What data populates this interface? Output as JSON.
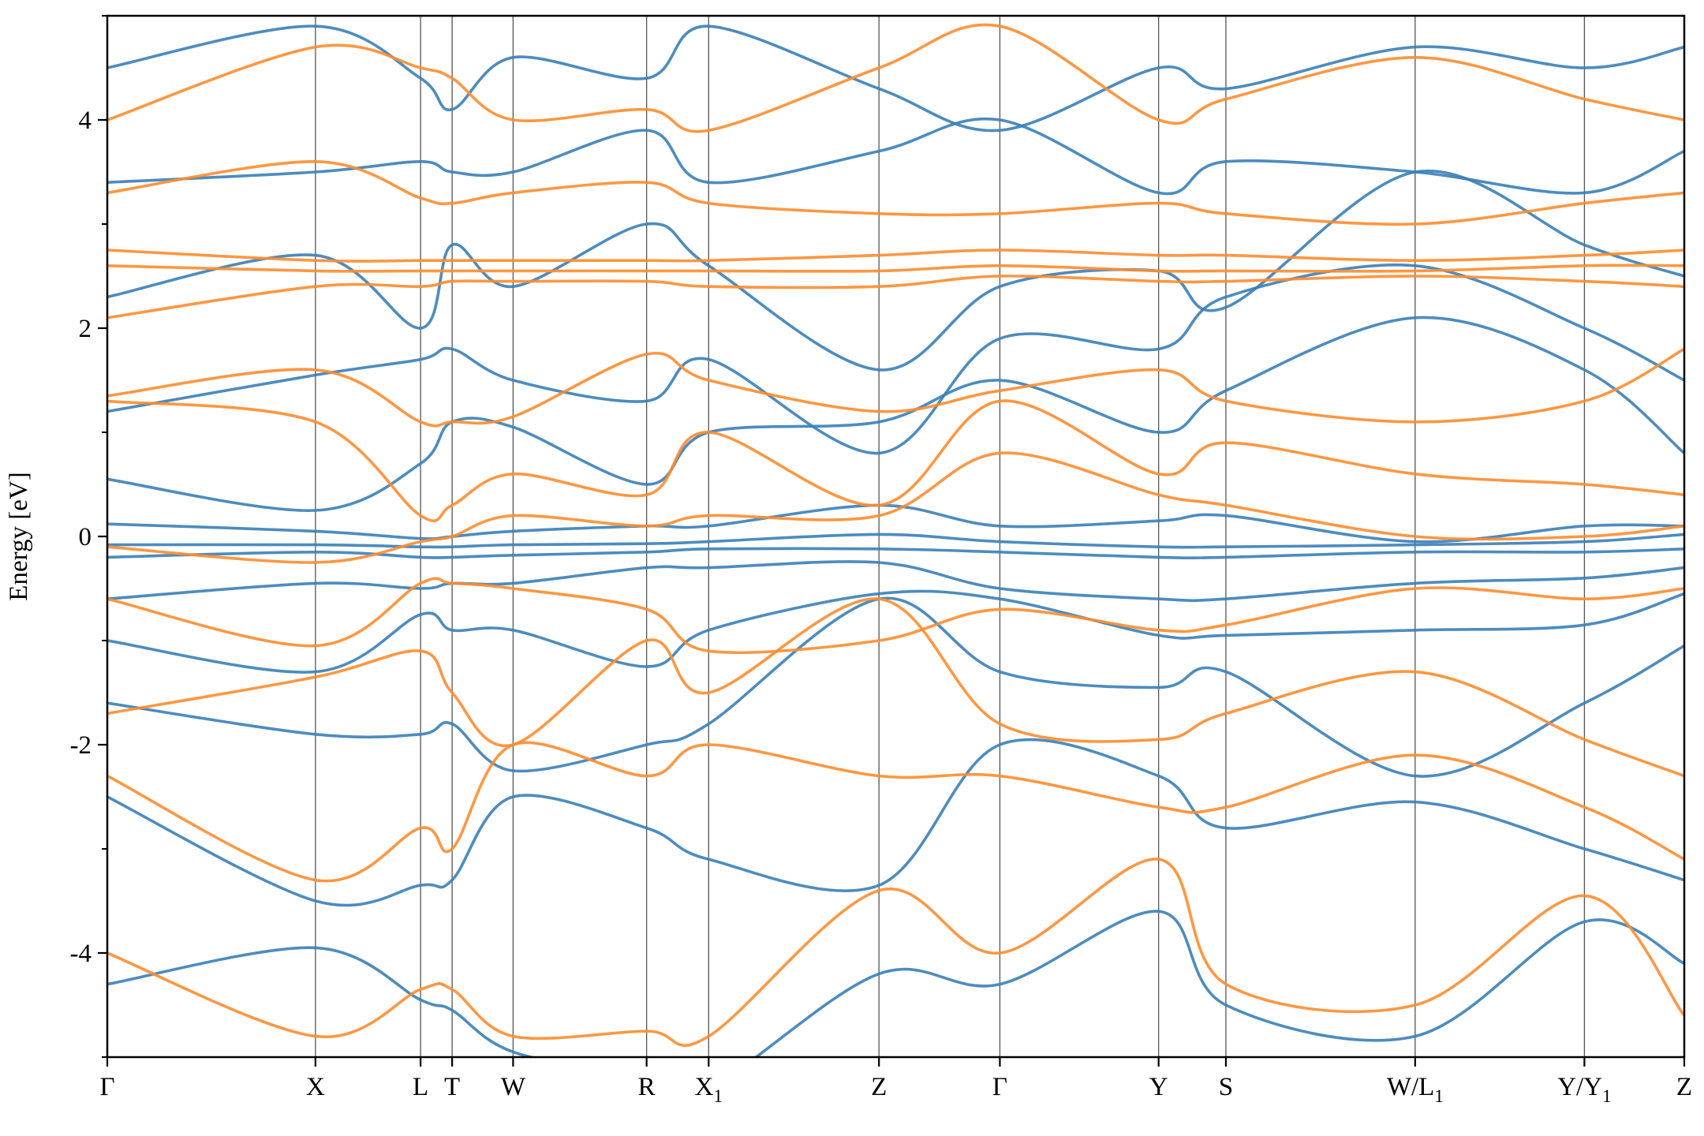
{
  "chart_data": {
    "type": "line",
    "title": "",
    "ylabel": "Energy [eV]",
    "xlabel": "",
    "ylim": [
      -5,
      5
    ],
    "yticks": [
      -4,
      -2,
      0,
      2,
      4
    ],
    "yticks_minor": [
      -5,
      -3,
      -1,
      1,
      3,
      5
    ],
    "ytick_labels": [
      "-4",
      "-2",
      "0",
      "2",
      "4"
    ],
    "xlim": [
      0,
      15.0
    ],
    "kpoints": [
      {
        "label": "Γ",
        "sub": "",
        "x": 0.0
      },
      {
        "label": "X",
        "sub": "",
        "x": 1.98
      },
      {
        "label": "L",
        "sub": "",
        "x": 2.98
      },
      {
        "label": "T",
        "sub": "",
        "x": 3.28
      },
      {
        "label": "W",
        "sub": "",
        "x": 3.86
      },
      {
        "label": "R",
        "sub": "",
        "x": 5.13
      },
      {
        "label": "X",
        "sub": "1",
        "x": 5.72
      },
      {
        "label": "Z",
        "sub": "",
        "x": 7.34
      },
      {
        "label": "Γ",
        "sub": "",
        "x": 8.49
      },
      {
        "label": "Y",
        "sub": "",
        "x": 10.0
      },
      {
        "label": "S",
        "sub": "",
        "x": 10.64
      },
      {
        "label": "W/L",
        "sub": "1",
        "x": 12.44
      },
      {
        "label": "Y/Y",
        "sub": "1",
        "x": 14.05
      },
      {
        "label": "Z",
        "sub": "",
        "x": 15.0
      }
    ],
    "grid": false,
    "legend": "none",
    "series_colors": {
      "spin1": "#3a7fb7",
      "spin2": "#ff8c2e"
    },
    "series": [
      {
        "color": "spin1",
        "x": [
          0,
          1.98,
          2.98,
          3.28,
          3.86,
          5.13,
          5.72,
          7.34,
          8.49,
          10.0,
          10.64,
          12.44,
          14.05,
          15.0
        ],
        "values": [
          -4.3,
          -3.95,
          -4.45,
          -4.55,
          -4.95,
          -5.2,
          -5.3,
          -4.2,
          -4.3,
          -3.6,
          -4.5,
          -4.8,
          -3.7,
          -4.1
        ]
      },
      {
        "color": "spin1",
        "x": [
          0,
          1.98,
          2.98,
          3.28,
          3.86,
          5.13,
          5.72,
          7.34,
          8.49,
          10.0,
          10.64,
          12.44,
          14.05,
          15.0
        ],
        "values": [
          -2.5,
          -3.5,
          -3.35,
          -3.3,
          -2.5,
          -2.8,
          -3.1,
          -3.35,
          -2.0,
          -2.3,
          -2.8,
          -2.55,
          -3.0,
          -3.3
        ]
      },
      {
        "color": "spin1",
        "x": [
          0,
          1.98,
          2.98,
          3.28,
          3.86,
          5.13,
          5.72,
          7.34,
          8.49,
          10.0,
          10.64,
          12.44,
          14.05,
          15.0
        ],
        "values": [
          -1.6,
          -1.9,
          -1.9,
          -1.8,
          -2.25,
          -2.0,
          -1.8,
          -0.6,
          -1.3,
          -1.45,
          -1.3,
          -2.3,
          -1.6,
          -1.05
        ]
      },
      {
        "color": "spin1",
        "x": [
          0,
          1.98,
          2.98,
          3.28,
          3.86,
          5.13,
          5.72,
          7.34,
          8.49,
          10.0,
          10.64,
          12.44,
          14.05,
          15.0
        ],
        "values": [
          -1.0,
          -1.3,
          -0.75,
          -0.9,
          -0.9,
          -1.25,
          -0.9,
          -0.55,
          -0.6,
          -0.95,
          -0.95,
          -0.9,
          -0.85,
          -0.55
        ]
      },
      {
        "color": "spin1",
        "x": [
          0,
          1.98,
          2.98,
          3.28,
          3.86,
          5.13,
          5.72,
          7.34,
          8.49,
          10.0,
          10.64,
          12.44,
          14.05,
          15.0
        ],
        "values": [
          -0.6,
          -0.45,
          -0.5,
          -0.45,
          -0.45,
          -0.3,
          -0.3,
          -0.25,
          -0.5,
          -0.6,
          -0.6,
          -0.45,
          -0.4,
          -0.3
        ]
      },
      {
        "color": "spin1",
        "x": [
          0,
          1.98,
          2.98,
          3.28,
          3.86,
          5.13,
          5.72,
          7.34,
          8.49,
          10.0,
          10.64,
          12.44,
          14.05,
          15.0
        ],
        "values": [
          -0.2,
          -0.15,
          -0.2,
          -0.2,
          -0.18,
          -0.15,
          -0.12,
          -0.12,
          -0.15,
          -0.2,
          -0.2,
          -0.15,
          -0.15,
          -0.12
        ]
      },
      {
        "color": "spin1",
        "x": [
          0,
          1.98,
          2.98,
          3.28,
          3.86,
          5.13,
          5.72,
          7.34,
          8.49,
          10.0,
          10.64,
          12.44,
          14.05,
          15.0
        ],
        "values": [
          -0.08,
          -0.08,
          -0.1,
          -0.1,
          -0.08,
          -0.07,
          -0.05,
          0.02,
          -0.05,
          -0.1,
          -0.1,
          -0.08,
          -0.05,
          0.02
        ]
      },
      {
        "color": "spin1",
        "x": [
          0,
          1.98,
          2.98,
          3.28,
          3.86,
          5.13,
          5.72,
          7.34,
          8.49,
          10.0,
          10.64,
          12.44,
          14.05,
          15.0
        ],
        "values": [
          0.12,
          0.05,
          -0.02,
          0.0,
          0.05,
          0.1,
          0.1,
          0.3,
          0.1,
          0.15,
          0.2,
          -0.05,
          0.1,
          0.1
        ]
      },
      {
        "color": "spin1",
        "x": [
          0,
          1.98,
          2.98,
          3.28,
          3.86,
          5.13,
          5.72,
          7.34,
          8.49,
          10.0,
          10.64,
          12.44,
          14.05,
          15.0
        ],
        "values": [
          0.55,
          0.25,
          0.7,
          1.1,
          1.05,
          0.5,
          1.0,
          1.1,
          1.5,
          1.0,
          1.4,
          2.1,
          1.6,
          0.8
        ]
      },
      {
        "color": "spin1",
        "x": [
          0,
          1.98,
          2.98,
          3.28,
          3.86,
          5.13,
          5.72,
          7.34,
          8.49,
          10.0,
          10.64,
          12.44,
          14.05,
          15.0
        ],
        "values": [
          1.2,
          1.55,
          1.7,
          1.8,
          1.5,
          1.3,
          1.7,
          0.8,
          1.9,
          1.8,
          2.3,
          2.6,
          2.0,
          1.5
        ]
      },
      {
        "color": "spin1",
        "x": [
          0,
          1.98,
          2.98,
          3.28,
          3.86,
          5.13,
          5.72,
          7.34,
          8.49,
          10.0,
          10.64,
          12.44,
          14.05,
          15.0
        ],
        "values": [
          2.3,
          2.7,
          2.0,
          2.8,
          2.4,
          3.0,
          2.6,
          1.6,
          2.4,
          2.55,
          2.2,
          3.5,
          2.8,
          2.5
        ]
      },
      {
        "color": "spin1",
        "x": [
          0,
          1.98,
          2.98,
          3.28,
          3.86,
          5.13,
          5.72,
          7.34,
          8.49,
          10.0,
          10.64,
          12.44,
          14.05,
          15.0
        ],
        "values": [
          3.4,
          3.5,
          3.6,
          3.5,
          3.5,
          3.9,
          3.4,
          3.7,
          4.0,
          3.3,
          3.6,
          3.5,
          3.3,
          3.7
        ]
      },
      {
        "color": "spin1",
        "x": [
          0,
          1.98,
          2.98,
          3.28,
          3.86,
          5.13,
          5.72,
          7.34,
          8.49,
          10.0,
          10.64,
          12.44,
          14.05,
          15.0
        ],
        "values": [
          4.5,
          4.9,
          4.4,
          4.1,
          4.6,
          4.4,
          4.9,
          4.3,
          3.9,
          4.5,
          4.3,
          4.7,
          4.5,
          4.7
        ]
      },
      {
        "color": "spin2",
        "x": [
          0,
          1.98,
          2.98,
          3.28,
          3.86,
          5.13,
          5.72,
          7.34,
          8.49,
          10.0,
          10.64,
          12.44,
          14.05,
          15.0
        ],
        "values": [
          -4.0,
          -4.8,
          -4.35,
          -4.35,
          -4.8,
          -4.75,
          -4.8,
          -3.4,
          -4.0,
          -3.1,
          -4.3,
          -4.5,
          -3.45,
          -4.6
        ]
      },
      {
        "color": "spin2",
        "x": [
          0,
          1.98,
          2.98,
          3.28,
          3.86,
          5.13,
          5.72,
          7.34,
          8.49,
          10.0,
          10.64,
          12.44,
          14.05,
          15.0
        ],
        "values": [
          -2.3,
          -3.3,
          -2.8,
          -3.0,
          -2.0,
          -2.3,
          -2.0,
          -2.3,
          -2.3,
          -2.6,
          -2.6,
          -2.1,
          -2.6,
          -3.1
        ]
      },
      {
        "color": "spin2",
        "x": [
          0,
          1.98,
          2.98,
          3.28,
          3.86,
          5.13,
          5.72,
          7.34,
          8.49,
          10.0,
          10.64,
          12.44,
          14.05,
          15.0
        ],
        "values": [
          -1.7,
          -1.35,
          -1.1,
          -1.5,
          -2.0,
          -1.0,
          -1.5,
          -0.6,
          -1.8,
          -1.95,
          -1.7,
          -1.3,
          -1.95,
          -2.3
        ]
      },
      {
        "color": "spin2",
        "x": [
          0,
          1.98,
          2.98,
          3.28,
          3.86,
          5.13,
          5.72,
          7.34,
          8.49,
          10.0,
          10.64,
          12.44,
          14.05,
          15.0
        ],
        "values": [
          -0.6,
          -1.05,
          -0.45,
          -0.45,
          -0.5,
          -0.7,
          -1.1,
          -1.0,
          -0.7,
          -0.9,
          -0.85,
          -0.5,
          -0.6,
          -0.5
        ]
      },
      {
        "color": "spin2",
        "x": [
          0,
          1.98,
          2.98,
          3.28,
          3.86,
          5.13,
          5.72,
          7.34,
          8.49,
          10.0,
          10.64,
          12.44,
          14.05,
          15.0
        ],
        "values": [
          -0.1,
          -0.25,
          -0.05,
          0.0,
          0.2,
          0.1,
          0.2,
          0.2,
          0.8,
          0.4,
          0.3,
          0.0,
          0.0,
          0.1
        ]
      },
      {
        "color": "spin2",
        "x": [
          0,
          1.98,
          2.98,
          3.28,
          3.86,
          5.13,
          5.72,
          7.34,
          8.49,
          10.0,
          10.64,
          12.44,
          14.05,
          15.0
        ],
        "values": [
          1.3,
          1.1,
          0.2,
          0.3,
          0.6,
          0.4,
          1.0,
          0.3,
          1.3,
          0.6,
          0.9,
          0.6,
          0.5,
          0.4
        ]
      },
      {
        "color": "spin2",
        "x": [
          0,
          1.98,
          2.98,
          3.28,
          3.86,
          5.13,
          5.72,
          7.34,
          8.49,
          10.0,
          10.64,
          12.44,
          14.05,
          15.0
        ],
        "values": [
          1.35,
          1.6,
          1.1,
          1.1,
          1.15,
          1.75,
          1.5,
          1.2,
          1.4,
          1.6,
          1.3,
          1.1,
          1.3,
          1.8
        ]
      },
      {
        "color": "spin2",
        "x": [
          0,
          1.98,
          2.98,
          3.28,
          3.86,
          5.13,
          5.72,
          7.34,
          8.49,
          10.0,
          10.64,
          12.44,
          14.05,
          15.0
        ],
        "values": [
          2.1,
          2.4,
          2.4,
          2.45,
          2.45,
          2.45,
          2.4,
          2.4,
          2.5,
          2.45,
          2.45,
          2.5,
          2.45,
          2.4
        ]
      },
      {
        "color": "spin2",
        "x": [
          0,
          1.98,
          2.98,
          3.28,
          3.86,
          5.13,
          5.72,
          7.34,
          8.49,
          10.0,
          10.64,
          12.44,
          14.05,
          15.0
        ],
        "values": [
          2.6,
          2.55,
          2.55,
          2.55,
          2.55,
          2.55,
          2.55,
          2.55,
          2.6,
          2.55,
          2.55,
          2.55,
          2.6,
          2.6
        ]
      },
      {
        "color": "spin2",
        "x": [
          0,
          1.98,
          2.98,
          3.28,
          3.86,
          5.13,
          5.72,
          7.34,
          8.49,
          10.0,
          10.64,
          12.44,
          14.05,
          15.0
        ],
        "values": [
          2.75,
          2.65,
          2.65,
          2.65,
          2.65,
          2.65,
          2.65,
          2.7,
          2.75,
          2.7,
          2.7,
          2.65,
          2.7,
          2.75
        ]
      },
      {
        "color": "spin2",
        "x": [
          0,
          1.98,
          2.98,
          3.28,
          3.86,
          5.13,
          5.72,
          7.34,
          8.49,
          10.0,
          10.64,
          12.44,
          14.05,
          15.0
        ],
        "values": [
          3.3,
          3.6,
          3.25,
          3.2,
          3.3,
          3.4,
          3.2,
          3.1,
          3.1,
          3.2,
          3.1,
          3.0,
          3.2,
          3.3
        ]
      },
      {
        "color": "spin2",
        "x": [
          0,
          1.98,
          2.98,
          3.28,
          3.86,
          5.13,
          5.72,
          7.34,
          8.49,
          10.0,
          10.64,
          12.44,
          14.05,
          15.0
        ],
        "values": [
          4.0,
          4.7,
          4.5,
          4.4,
          4.0,
          4.1,
          3.9,
          4.5,
          4.9,
          4.0,
          4.2,
          4.6,
          4.2,
          4.0
        ]
      }
    ]
  }
}
